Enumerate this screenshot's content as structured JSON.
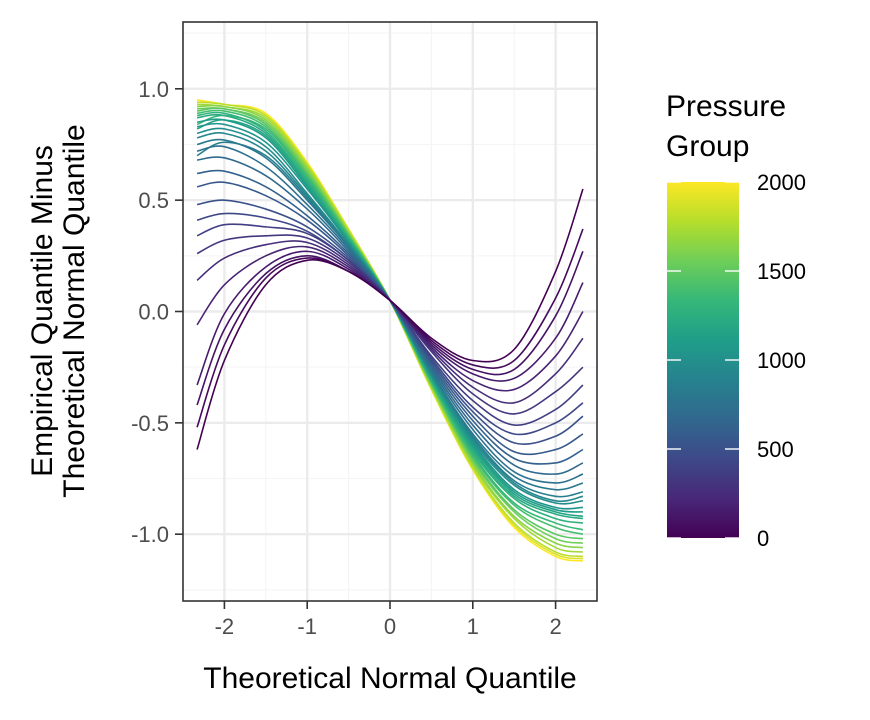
{
  "chart_data": {
    "type": "line",
    "xlabel": "Theoretical Normal Quantile",
    "ylabel_lines": [
      "Empirical Quantile Minus",
      "Theoretical Normal Quantile"
    ],
    "xlim": [
      -2.5,
      2.5
    ],
    "ylim": [
      -1.3,
      1.3
    ],
    "x_ticks": [
      -2,
      -1,
      0,
      1,
      2
    ],
    "x_tick_labels": [
      "-2",
      "-1",
      "0",
      "1",
      "2"
    ],
    "y_ticks": [
      -1.0,
      -0.5,
      0.0,
      0.5,
      1.0
    ],
    "y_tick_labels": [
      "-1.0",
      "-0.5",
      "0.0",
      "0.5",
      "1.0"
    ],
    "grid": true,
    "theme": "bw",
    "legend": {
      "title_lines": [
        "Pressure",
        "Group"
      ],
      "placement": "right",
      "type": "colorbar",
      "colormap": "viridis",
      "min": 0,
      "max": 2000,
      "breaks": [
        0,
        500,
        1000,
        1500,
        2000
      ],
      "break_labels": [
        "0",
        "500",
        "1000",
        "1500",
        "2000"
      ]
    },
    "x": [
      -2.33,
      -2.0,
      -1.5,
      -1.0,
      -0.5,
      0.0,
      0.5,
      1.0,
      1.5,
      2.0,
      2.33
    ],
    "series": [
      {
        "group": 0,
        "values": [
          -0.62,
          -0.22,
          0.12,
          0.23,
          0.18,
          0.05,
          -0.12,
          -0.22,
          -0.17,
          0.18,
          0.55
        ]
      },
      {
        "group": 50,
        "values": [
          -0.52,
          -0.15,
          0.15,
          0.24,
          0.18,
          0.05,
          -0.13,
          -0.24,
          -0.22,
          0.06,
          0.37
        ]
      },
      {
        "group": 100,
        "values": [
          -0.42,
          -0.08,
          0.17,
          0.25,
          0.18,
          0.05,
          -0.14,
          -0.26,
          -0.26,
          -0.02,
          0.27
        ]
      },
      {
        "group": 150,
        "values": [
          -0.33,
          -0.01,
          0.2,
          0.27,
          0.19,
          0.05,
          -0.15,
          -0.28,
          -0.3,
          -0.12,
          0.13
        ]
      },
      {
        "group": 200,
        "values": [
          -0.06,
          0.12,
          0.25,
          0.29,
          0.2,
          0.05,
          -0.16,
          -0.31,
          -0.35,
          -0.2,
          0.0
        ]
      },
      {
        "group": 260,
        "values": [
          0.14,
          0.24,
          0.3,
          0.31,
          0.21,
          0.05,
          -0.17,
          -0.34,
          -0.41,
          -0.28,
          -0.12
        ]
      },
      {
        "group": 320,
        "values": [
          0.26,
          0.32,
          0.34,
          0.33,
          0.22,
          0.05,
          -0.18,
          -0.37,
          -0.46,
          -0.36,
          -0.25
        ]
      },
      {
        "group": 380,
        "values": [
          0.34,
          0.39,
          0.38,
          0.35,
          0.23,
          0.05,
          -0.2,
          -0.4,
          -0.51,
          -0.44,
          -0.33
        ]
      },
      {
        "group": 440,
        "values": [
          0.41,
          0.44,
          0.42,
          0.36,
          0.23,
          0.05,
          -0.21,
          -0.43,
          -0.55,
          -0.5,
          -0.41
        ]
      },
      {
        "group": 500,
        "values": [
          0.48,
          0.5,
          0.46,
          0.38,
          0.24,
          0.05,
          -0.22,
          -0.45,
          -0.59,
          -0.56,
          -0.47
        ]
      },
      {
        "group": 560,
        "values": [
          0.56,
          0.58,
          0.52,
          0.41,
          0.25,
          0.05,
          -0.23,
          -0.47,
          -0.63,
          -0.62,
          -0.55
        ]
      },
      {
        "group": 620,
        "values": [
          0.62,
          0.63,
          0.56,
          0.43,
          0.26,
          0.05,
          -0.24,
          -0.49,
          -0.66,
          -0.68,
          -0.62
        ]
      },
      {
        "group": 680,
        "values": [
          0.68,
          0.69,
          0.61,
          0.46,
          0.27,
          0.05,
          -0.25,
          -0.51,
          -0.69,
          -0.73,
          -0.68
        ]
      },
      {
        "group": 740,
        "values": [
          0.72,
          0.74,
          0.65,
          0.48,
          0.28,
          0.05,
          -0.26,
          -0.53,
          -0.72,
          -0.77,
          -0.73
        ]
      },
      {
        "group": 800,
        "values": [
          0.75,
          0.77,
          0.69,
          0.5,
          0.29,
          0.05,
          -0.27,
          -0.55,
          -0.74,
          -0.8,
          -0.77
        ]
      },
      {
        "group": 860,
        "values": [
          0.7,
          0.76,
          0.7,
          0.51,
          0.29,
          0.05,
          -0.27,
          -0.56,
          -0.76,
          -0.83,
          -0.81
        ]
      },
      {
        "group": 920,
        "values": [
          0.78,
          0.8,
          0.72,
          0.52,
          0.3,
          0.05,
          -0.28,
          -0.57,
          -0.77,
          -0.85,
          -0.83
        ]
      },
      {
        "group": 980,
        "values": [
          0.8,
          0.82,
          0.74,
          0.53,
          0.3,
          0.05,
          -0.28,
          -0.58,
          -0.78,
          -0.86,
          -0.85
        ]
      },
      {
        "group": 1040,
        "values": [
          0.83,
          0.84,
          0.76,
          0.55,
          0.31,
          0.05,
          -0.29,
          -0.59,
          -0.8,
          -0.88,
          -0.88
        ]
      },
      {
        "group": 1100,
        "values": [
          0.85,
          0.86,
          0.78,
          0.56,
          0.31,
          0.05,
          -0.29,
          -0.6,
          -0.81,
          -0.89,
          -0.9
        ]
      },
      {
        "group": 1160,
        "values": [
          0.82,
          0.86,
          0.79,
          0.57,
          0.32,
          0.05,
          -0.3,
          -0.61,
          -0.82,
          -0.9,
          -0.92
        ]
      },
      {
        "group": 1220,
        "values": [
          0.87,
          0.88,
          0.8,
          0.58,
          0.32,
          0.05,
          -0.3,
          -0.62,
          -0.83,
          -0.91,
          -0.93
        ]
      },
      {
        "group": 1280,
        "values": [
          0.88,
          0.89,
          0.81,
          0.59,
          0.33,
          0.05,
          -0.31,
          -0.63,
          -0.84,
          -0.93,
          -0.95
        ]
      },
      {
        "group": 1340,
        "values": [
          0.84,
          0.88,
          0.82,
          0.6,
          0.33,
          0.05,
          -0.31,
          -0.64,
          -0.86,
          -0.95,
          -0.98
        ]
      },
      {
        "group": 1400,
        "values": [
          0.89,
          0.9,
          0.83,
          0.61,
          0.34,
          0.05,
          -0.32,
          -0.65,
          -0.87,
          -0.97,
          -1.0
        ]
      },
      {
        "group": 1480,
        "values": [
          0.9,
          0.91,
          0.84,
          0.62,
          0.34,
          0.05,
          -0.32,
          -0.66,
          -0.89,
          -1.0,
          -1.02
        ]
      },
      {
        "group": 1560,
        "values": [
          0.91,
          0.91,
          0.85,
          0.63,
          0.35,
          0.05,
          -0.33,
          -0.67,
          -0.9,
          -1.02,
          -1.04
        ]
      },
      {
        "group": 1640,
        "values": [
          0.92,
          0.92,
          0.86,
          0.64,
          0.35,
          0.05,
          -0.33,
          -0.68,
          -0.92,
          -1.04,
          -1.06
        ]
      },
      {
        "group": 1720,
        "values": [
          0.93,
          0.92,
          0.87,
          0.65,
          0.36,
          0.05,
          -0.34,
          -0.69,
          -0.93,
          -1.06,
          -1.08
        ]
      },
      {
        "group": 1800,
        "values": [
          0.94,
          0.93,
          0.88,
          0.66,
          0.36,
          0.05,
          -0.34,
          -0.7,
          -0.95,
          -1.08,
          -1.1
        ]
      },
      {
        "group": 1900,
        "values": [
          0.94,
          0.93,
          0.88,
          0.66,
          0.37,
          0.05,
          -0.35,
          -0.71,
          -0.96,
          -1.09,
          -1.11
        ]
      },
      {
        "group": 2000,
        "values": [
          0.95,
          0.93,
          0.89,
          0.67,
          0.37,
          0.05,
          -0.35,
          -0.71,
          -0.97,
          -1.1,
          -1.12
        ]
      }
    ]
  },
  "colors": {
    "panel_border": "#333333",
    "grid_major": "#ebebeb",
    "grid_minor": "#f5f5f5",
    "tick_text": "#4d4d4d",
    "tick_mark": "#333333",
    "viridis": [
      "#440154",
      "#482878",
      "#3e4989",
      "#31688e",
      "#26828e",
      "#1f9e89",
      "#35b779",
      "#6ece58",
      "#b5de2b",
      "#fde725"
    ]
  }
}
